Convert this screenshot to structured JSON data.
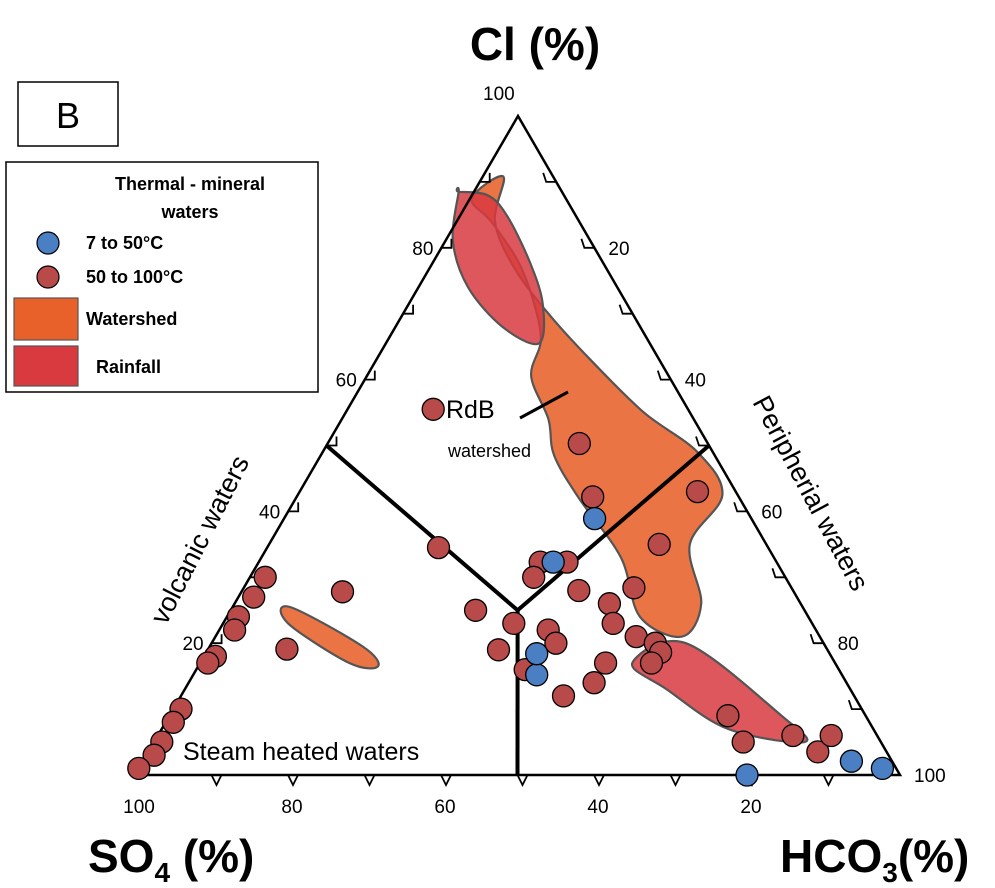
{
  "panel_label": "B",
  "apex_labels": {
    "top": "Cl (%)",
    "left_main": "SO",
    "left_sub": "4",
    "left_tail": " (%)",
    "right_main": "HCO",
    "right_sub": "3",
    "right_tail": "(%)"
  },
  "region_labels": {
    "volcanic": "volcanic waters",
    "peripherial": "Peripherial waters",
    "steam": "Steam heated waters",
    "rdb": "RdB",
    "watershed": "watershed"
  },
  "legend": {
    "title_line1": "Thermal - mineral",
    "title_line2": "waters",
    "items": [
      {
        "label": "7 to 50°C",
        "kind": "point",
        "color": "#4a7fc4"
      },
      {
        "label": "50 to 100°C",
        "kind": "point",
        "color": "#b84a4a"
      },
      {
        "label": "Watershed",
        "kind": "area",
        "color": "#e8612a"
      },
      {
        "label": "Rainfall",
        "kind": "area",
        "color": "#d83a40"
      }
    ]
  },
  "colors": {
    "cold": "#4a7fc4",
    "hot": "#b84a4a",
    "watershed": "#e8612a",
    "rainfall": "#d83a40",
    "outline": "#555555"
  },
  "chart_data": {
    "type": "ternary",
    "components": [
      "Cl",
      "SO4",
      "HCO3"
    ],
    "units": "%",
    "axes": {
      "cl_ticks": [
        "20",
        "40",
        "60",
        "80",
        "100"
      ],
      "cl_tick_values": [
        20,
        40,
        60,
        80,
        100
      ],
      "hco3_ticks": [
        "20",
        "40",
        "60",
        "80",
        "100"
      ],
      "hco3_tick_values": [
        20,
        40,
        60,
        80,
        100
      ],
      "so4_ticks": [
        "100",
        "80",
        "60",
        "40",
        "20"
      ],
      "so4_tick_values": [
        100,
        80,
        60,
        40,
        20
      ]
    },
    "dividers": [
      {
        "name": "volcanic-boundary",
        "from": [
          50,
          50,
          0
        ],
        "to": [
          25,
          37.5,
          37.5
        ]
      },
      {
        "name": "steam-boundary",
        "from": [
          0,
          50,
          50
        ],
        "to": [
          25,
          37.5,
          37.5
        ]
      },
      {
        "name": "peripheral-boundary",
        "from": [
          50,
          0,
          50
        ],
        "to": [
          25,
          37.5,
          37.5
        ]
      }
    ],
    "series": [
      {
        "name": "7 to 50°C",
        "color": "#4a7fc4",
        "points": [
          [
            38.9,
            20.5,
            40.6
          ],
          [
            32.3,
            29.2,
            38.5
          ],
          [
            15.2,
            39.9,
            44.9
          ],
          [
            18.4,
            38.3,
            43.3
          ],
          [
            0,
            20,
            80
          ],
          [
            2.1,
            5.3,
            92.6
          ],
          [
            1.0,
            1.8,
            97.2
          ]
        ]
      },
      {
        "name": "50 to 100°C",
        "color": "#b84a4a",
        "points": [
          [
            55.5,
            33.3,
            11.2
          ],
          [
            50.3,
            16.8,
            32.9
          ],
          [
            42.2,
            19.1,
            38.7
          ],
          [
            34.5,
            43.1,
            22.4
          ],
          [
            27.8,
            59.0,
            13.2
          ],
          [
            19.1,
            70.6,
            10.3
          ],
          [
            32.3,
            30.9,
            36.8
          ],
          [
            30.0,
            32.9,
            37.1
          ],
          [
            32.3,
            27.4,
            40.3
          ],
          [
            28.4,
            20.6,
            51.0
          ],
          [
            25.0,
            43.0,
            32.0
          ],
          [
            23.0,
            39.0,
            38.0
          ],
          [
            22.0,
            35.0,
            43.0
          ],
          [
            19.0,
            43.0,
            38.0
          ],
          [
            20.0,
            35.0,
            45.0
          ],
          [
            16.0,
            41.0,
            43.0
          ],
          [
            14.0,
            33.0,
            53.0
          ],
          [
            12.0,
            38.0,
            50.0
          ],
          [
            28.0,
            28.0,
            44.0
          ],
          [
            26.0,
            25.0,
            49.0
          ],
          [
            23.0,
            26.0,
            51.0
          ],
          [
            21.0,
            24.0,
            55.0
          ],
          [
            20.0,
            22.0,
            58.0
          ],
          [
            18.6,
            22.0,
            59.4
          ],
          [
            17.0,
            24.0,
            59.0
          ],
          [
            9.0,
            18.0,
            73.0
          ],
          [
            6.0,
            11.0,
            83.0
          ],
          [
            5.0,
            18.0,
            77.0
          ],
          [
            3.5,
            9.0,
            87.5
          ],
          [
            6.0,
            6.0,
            88.0
          ],
          [
            30.0,
            68.0,
            2.0
          ],
          [
            27.0,
            71.0,
            2.0
          ],
          [
            24.0,
            74.5,
            1.5
          ],
          [
            22.0,
            76.0,
            2.0
          ],
          [
            18.0,
            80.5,
            1.5
          ],
          [
            17.0,
            82.0,
            1.0
          ],
          [
            10.0,
            89.0,
            1.0
          ],
          [
            8.0,
            91.0,
            1.0
          ],
          [
            5.0,
            94.0,
            1.0
          ],
          [
            3.0,
            96.0,
            1.0
          ],
          [
            1.0,
            99.0,
            0.0
          ],
          [
            43.0,
            5.0,
            52.0
          ],
          [
            35.0,
            14.0,
            51.0
          ],
          [
            17.0,
            30.0,
            53.0
          ]
        ]
      }
    ],
    "areas": [
      {
        "name": "Watershed",
        "color": "#e8612a",
        "polygons": [
          [
            [
              90.8,
              6.5,
              2.7
            ],
            [
              87.5,
              12.3,
              0.2
            ],
            [
              84.0,
              11.5,
              4.5
            ],
            [
              78.0,
              11.0,
              11.0
            ],
            [
              72.0,
              12.0,
              16.0
            ],
            [
              66.0,
              14.0,
              20.0
            ],
            [
              60.5,
              18.0,
              21.5
            ],
            [
              54.0,
              19.0,
              27.0
            ],
            [
              48.5,
              21.0,
              30.5
            ],
            [
              42.0,
              21.0,
              37.0
            ],
            [
              33.0,
              20.0,
              47.0
            ],
            [
              24.0,
              22.0,
              54.0
            ],
            [
              21.0,
              18.0,
              61.0
            ],
            [
              26.0,
              13.0,
              61.0
            ],
            [
              35.0,
              10.0,
              55.0
            ],
            [
              42.5,
              2.0,
              55.5
            ],
            [
              49.0,
              2.0,
              49.0
            ],
            [
              55.0,
              6.0,
              39.0
            ],
            [
              63.0,
              9.0,
              28.0
            ],
            [
              70.0,
              11.0,
              19.0
            ],
            [
              77.0,
              12.0,
              11.0
            ],
            [
              84.0,
              11.0,
              5.0
            ]
          ],
          [
            [
              23.0,
              68.5,
              8.5
            ],
            [
              25.5,
              67.0,
              7.5
            ],
            [
              19.5,
              60.5,
              20.0
            ],
            [
              16.5,
              60.0,
              23.5
            ],
            [
              17.0,
              63.5,
              19.5
            ]
          ]
        ]
      },
      {
        "name": "Rainfall",
        "color": "#d83a40",
        "polygons": [
          [
            [
              88.5,
              13.5,
              -2.0
            ],
            [
              88.0,
              10.0,
              2.0
            ],
            [
              85.0,
              9.0,
              6.0
            ],
            [
              78.0,
              9.5,
              12.5
            ],
            [
              71.5,
              11.0,
              17.5
            ],
            [
              65.5,
              14.5,
              20.0
            ],
            [
              68.0,
              18.0,
              14.0
            ],
            [
              74.0,
              19.5,
              6.5
            ],
            [
              81.0,
              18.0,
              1.0
            ],
            [
              88.5,
              13.5,
              -2.0
            ]
          ],
          [
            [
              17.0,
              26.5,
              56.5
            ],
            [
              20.0,
              18.0,
              62.0
            ],
            [
              9.0,
              11.0,
              80.0
            ],
            [
              5.0,
              10.0,
              85.0
            ],
            [
              7.0,
              19.0,
              74.0
            ],
            [
              13.0,
              24.0,
              63.0
            ]
          ]
        ]
      }
    ]
  }
}
